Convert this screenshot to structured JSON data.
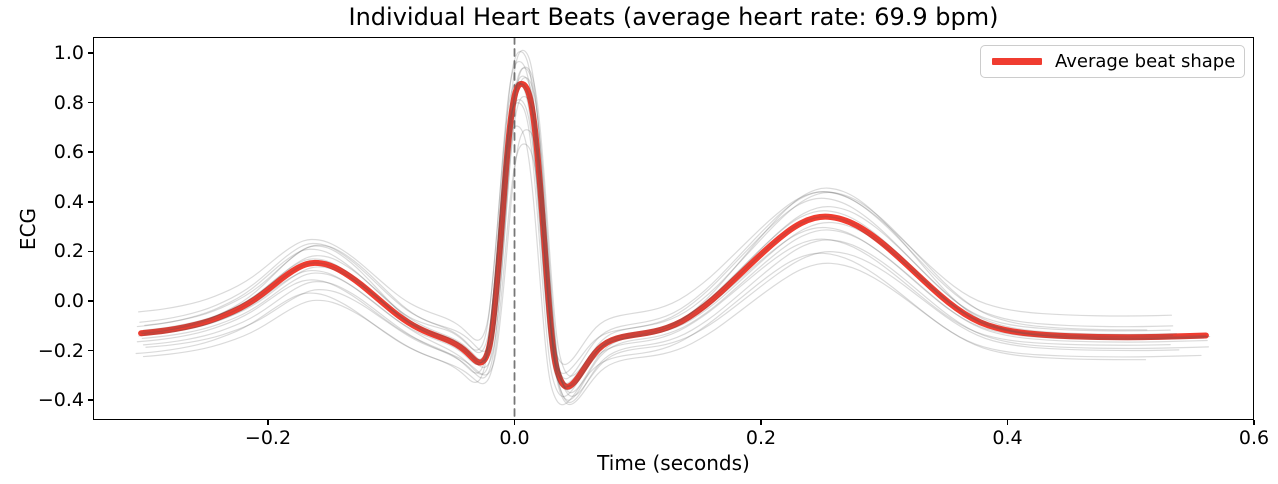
{
  "figure": {
    "title": "Individual Heart Beats (average heart rate: 69.9 bpm)",
    "xlabel": "Time (seconds)",
    "ylabel": "ECG",
    "legend_label": "Average beat shape"
  },
  "colors": {
    "average_line": "#f03c30",
    "individual_line": "#555555",
    "individual_alpha": 0.22,
    "dashed_vline": "#777777",
    "axes_frame": "#000000",
    "background": "#ffffff",
    "legend_border": "#cccccc"
  },
  "chart_data": {
    "type": "line",
    "title": "Individual Heart Beats (average heart rate: 69.9 bpm)",
    "xlabel": "Time (seconds)",
    "ylabel": "ECG",
    "average_heart_rate_bpm": 69.9,
    "xlim": [
      -0.342,
      0.6
    ],
    "ylim": [
      -0.48,
      1.065
    ],
    "grid": false,
    "legend_position": "upper right",
    "legend_entries": [
      "Average beat shape"
    ],
    "xticks": [
      {
        "v": -0.2,
        "label": "−0.2"
      },
      {
        "v": 0.0,
        "label": "0.0"
      },
      {
        "v": 0.2,
        "label": "0.2"
      },
      {
        "v": 0.4,
        "label": "0.4"
      },
      {
        "v": 0.6,
        "label": "0.6"
      }
    ],
    "yticks": [
      {
        "v": 1.0,
        "label": "1.0"
      },
      {
        "v": 0.8,
        "label": "0.8"
      },
      {
        "v": 0.6,
        "label": "0.6"
      },
      {
        "v": 0.4,
        "label": "0.4"
      },
      {
        "v": 0.2,
        "label": "0.2"
      },
      {
        "v": 0.0,
        "label": "0.0"
      },
      {
        "v": -0.2,
        "label": "−0.2"
      },
      {
        "v": -0.4,
        "label": "−0.4"
      }
    ],
    "vline": {
      "x": 0.0,
      "style": "dashed",
      "color": "#777777"
    },
    "series": [
      {
        "name": "Average beat shape",
        "color": "#f03c30",
        "linewidth": 6,
        "points": [
          [
            -0.303,
            -0.13
          ],
          [
            -0.29,
            -0.124
          ],
          [
            -0.275,
            -0.113
          ],
          [
            -0.26,
            -0.098
          ],
          [
            -0.247,
            -0.08
          ],
          [
            -0.235,
            -0.057
          ],
          [
            -0.222,
            -0.028
          ],
          [
            -0.21,
            0.008
          ],
          [
            -0.199,
            0.05
          ],
          [
            -0.189,
            0.09
          ],
          [
            -0.18,
            0.122
          ],
          [
            -0.172,
            0.144
          ],
          [
            -0.166,
            0.153
          ],
          [
            -0.16,
            0.154
          ],
          [
            -0.153,
            0.149
          ],
          [
            -0.146,
            0.136
          ],
          [
            -0.138,
            0.114
          ],
          [
            -0.129,
            0.084
          ],
          [
            -0.12,
            0.048
          ],
          [
            -0.111,
            0.01
          ],
          [
            -0.102,
            -0.028
          ],
          [
            -0.094,
            -0.06
          ],
          [
            -0.086,
            -0.088
          ],
          [
            -0.078,
            -0.11
          ],
          [
            -0.07,
            -0.128
          ],
          [
            -0.062,
            -0.143
          ],
          [
            -0.054,
            -0.158
          ],
          [
            -0.047,
            -0.175
          ],
          [
            -0.041,
            -0.196
          ],
          [
            -0.036,
            -0.22
          ],
          [
            -0.032,
            -0.24
          ],
          [
            -0.029,
            -0.249
          ],
          [
            -0.026,
            -0.247
          ],
          [
            -0.023,
            -0.228
          ],
          [
            -0.02,
            -0.18
          ],
          [
            -0.0175,
            -0.095
          ],
          [
            -0.015,
            0.03
          ],
          [
            -0.012,
            0.2
          ],
          [
            -0.009,
            0.4
          ],
          [
            -0.006,
            0.59
          ],
          [
            -0.003,
            0.74
          ],
          [
            0.0,
            0.833
          ],
          [
            0.003,
            0.871
          ],
          [
            0.006,
            0.878
          ],
          [
            0.009,
            0.868
          ],
          [
            0.012,
            0.835
          ],
          [
            0.015,
            0.76
          ],
          [
            0.018,
            0.63
          ],
          [
            0.021,
            0.455
          ],
          [
            0.024,
            0.25
          ],
          [
            0.027,
            0.04
          ],
          [
            0.03,
            -0.14
          ],
          [
            0.033,
            -0.255
          ],
          [
            0.037,
            -0.32
          ],
          [
            0.041,
            -0.347
          ],
          [
            0.045,
            -0.345
          ],
          [
            0.05,
            -0.32
          ],
          [
            0.056,
            -0.276
          ],
          [
            0.062,
            -0.23
          ],
          [
            0.068,
            -0.193
          ],
          [
            0.075,
            -0.166
          ],
          [
            0.083,
            -0.15
          ],
          [
            0.092,
            -0.14
          ],
          [
            0.102,
            -0.133
          ],
          [
            0.113,
            -0.124
          ],
          [
            0.124,
            -0.109
          ],
          [
            0.136,
            -0.083
          ],
          [
            0.148,
            -0.044
          ],
          [
            0.161,
            0.006
          ],
          [
            0.174,
            0.066
          ],
          [
            0.188,
            0.132
          ],
          [
            0.202,
            0.198
          ],
          [
            0.215,
            0.255
          ],
          [
            0.227,
            0.3
          ],
          [
            0.238,
            0.328
          ],
          [
            0.249,
            0.342
          ],
          [
            0.26,
            0.338
          ],
          [
            0.272,
            0.32
          ],
          [
            0.284,
            0.287
          ],
          [
            0.297,
            0.24
          ],
          [
            0.311,
            0.18
          ],
          [
            0.325,
            0.115
          ],
          [
            0.339,
            0.05
          ],
          [
            0.352,
            -0.006
          ],
          [
            0.365,
            -0.053
          ],
          [
            0.378,
            -0.088
          ],
          [
            0.391,
            -0.109
          ],
          [
            0.405,
            -0.124
          ],
          [
            0.42,
            -0.133
          ],
          [
            0.44,
            -0.14
          ],
          [
            0.462,
            -0.144
          ],
          [
            0.485,
            -0.146
          ],
          [
            0.51,
            -0.146
          ],
          [
            0.535,
            -0.143
          ],
          [
            0.561,
            -0.139
          ]
        ]
      }
    ],
    "individual_beats": {
      "count": 16,
      "note": "thin translucent gray lines; each beat approximated as average shape with qrs-scale sq, p/t-scale st, baseline offset o, time jitter tj, end time te",
      "variations": [
        {
          "o": 0.0,
          "sq": 1.0,
          "st": 1.0,
          "tj": 0.0,
          "te": 0.561
        },
        {
          "o": 0.02,
          "sq": 1.05,
          "st": 1.06,
          "tj": 0.002,
          "te": 0.545
        },
        {
          "o": -0.02,
          "sq": 0.95,
          "st": 0.93,
          "tj": -0.002,
          "te": 0.561
        },
        {
          "o": 0.05,
          "sq": 1.02,
          "st": 1.14,
          "tj": 0.003,
          "te": 0.53
        },
        {
          "o": -0.05,
          "sq": 0.97,
          "st": 0.88,
          "tj": -0.003,
          "te": 0.555
        },
        {
          "o": 0.03,
          "sq": 1.12,
          "st": 1.25,
          "tj": 0.001,
          "te": 0.561
        },
        {
          "o": -0.08,
          "sq": 0.88,
          "st": 0.82,
          "tj": 0.004,
          "te": 0.54
        },
        {
          "o": -0.1,
          "sq": 0.92,
          "st": 0.86,
          "tj": -0.004,
          "te": 0.561
        },
        {
          "o": -0.12,
          "sq": 0.86,
          "st": 0.8,
          "tj": 0.002,
          "te": 0.525
        },
        {
          "o": 0.01,
          "sq": 0.99,
          "st": 1.04,
          "tj": -0.001,
          "te": 0.558
        },
        {
          "o": -0.01,
          "sq": 1.04,
          "st": 0.96,
          "tj": 0.003,
          "te": 0.561
        },
        {
          "o": 0.04,
          "sq": 0.96,
          "st": 1.1,
          "tj": -0.003,
          "te": 0.535
        },
        {
          "o": -0.03,
          "sq": 1.07,
          "st": 0.93,
          "tj": 0.001,
          "te": 0.561
        },
        {
          "o": 0.09,
          "sq": 1.0,
          "st": 1.03,
          "tj": -0.002,
          "te": 0.55
        },
        {
          "o": -0.06,
          "sq": 1.01,
          "st": 0.9,
          "tj": 0.002,
          "te": 0.561
        },
        {
          "o": 0.06,
          "sq": 1.08,
          "st": 1.12,
          "tj": -0.001,
          "te": 0.545
        }
      ]
    }
  }
}
